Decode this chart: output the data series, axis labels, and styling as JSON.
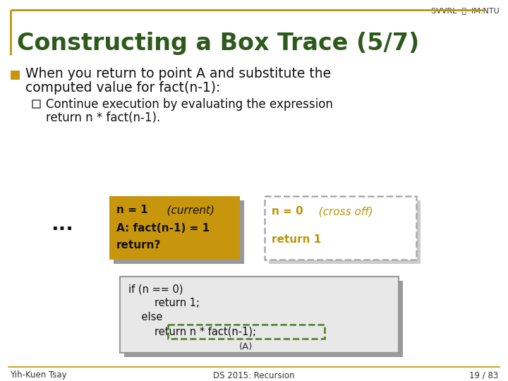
{
  "bg_color": "#ffffff",
  "header_line_color": "#b8960c",
  "title_text": "Constructing a Box Trace (5/7)",
  "title_color": "#2d5a1b",
  "header_label": "SVVRL Ⓝ IM.NTU",
  "bullet_color": "#c8960c",
  "box1_color": "#c8960c",
  "box1_shadow_color": "#999999",
  "box2_border_color": "#aaaaaa",
  "box2_text_color": "#b8960c",
  "code_box_bg": "#e8e8e8",
  "code_box_border": "#999999",
  "code_box_shadow": "#999999",
  "code_highlight_color": "#4a7a20",
  "dots_color": "#111111",
  "footer_line_color": "#b8960c",
  "footer_left": "Yih-Kuen Tsay",
  "footer_center": "DS 2015: Recursion",
  "footer_right": "19 / 83"
}
